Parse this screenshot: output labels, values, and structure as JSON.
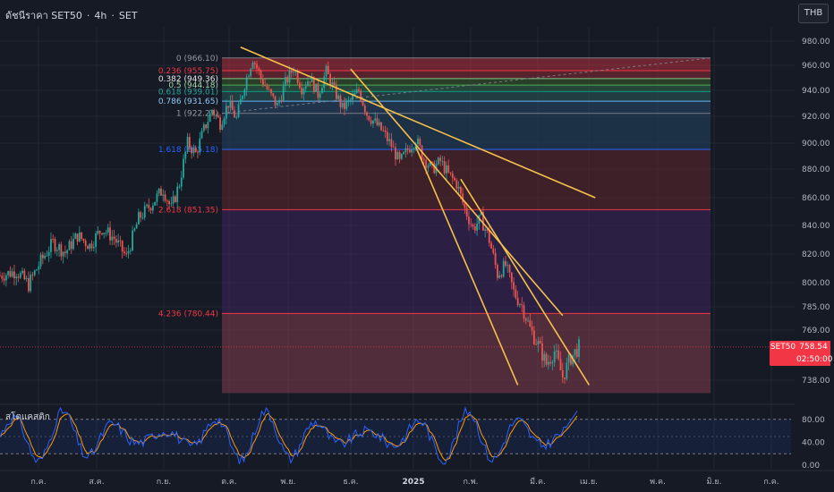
{
  "header": {
    "symbol_title": "ดัชนีราคา SET50",
    "interval": "4h",
    "exchange": "SET",
    "separator": "·"
  },
  "currency_button": "THB",
  "last_price": {
    "symbol": "SET50",
    "price": "758.54",
    "countdown": "02:50:00"
  },
  "oscillator": {
    "label": "สโตแคสติก"
  },
  "colors": {
    "background": "#161a25",
    "up": "#26a69a",
    "down": "#ef5350",
    "trendline": "#f5c14b",
    "stoch_k": "#2962ff",
    "stoch_d": "#ff9800"
  },
  "chart_data": {
    "type": "candlestick",
    "x_axis": {
      "tick_labels": [
        "ก.ค.",
        "ส.ค.",
        "ก.ย.",
        "ต.ค.",
        "พ.ย.",
        "ธ.ค.",
        "2025",
        "ก.พ.",
        "มี.ค.",
        "เม.ย.",
        "พ.ค.",
        "มิ.ย.",
        "ก.ค."
      ]
    },
    "y_axis": {
      "tick_labels": [
        "980.00",
        "960.00",
        "940.00",
        "920.00",
        "900.00",
        "880.00",
        "860.00",
        "840.00",
        "820.00",
        "800.00",
        "785.00",
        "769.00",
        "738.00"
      ],
      "range": [
        725,
        985
      ]
    },
    "price_path": [
      [
        0,
        805
      ],
      [
        8,
        808
      ],
      [
        14,
        799
      ],
      [
        20,
        815
      ],
      [
        26,
        828
      ],
      [
        32,
        821
      ],
      [
        38,
        833
      ],
      [
        44,
        826
      ],
      [
        50,
        838
      ],
      [
        56,
        831
      ],
      [
        62,
        818
      ],
      [
        68,
        845
      ],
      [
        74,
        855
      ],
      [
        80,
        866
      ],
      [
        84,
        852
      ],
      [
        88,
        870
      ],
      [
        92,
        900
      ],
      [
        96,
        892
      ],
      [
        100,
        910
      ],
      [
        104,
        925
      ],
      [
        108,
        915
      ],
      [
        112,
        930
      ],
      [
        116,
        918
      ],
      [
        120,
        945
      ],
      [
        124,
        966
      ],
      [
        128,
        950
      ],
      [
        132,
        938
      ],
      [
        136,
        928
      ],
      [
        140,
        946
      ],
      [
        144,
        958
      ],
      [
        148,
        942
      ],
      [
        152,
        950
      ],
      [
        156,
        937
      ],
      [
        160,
        955
      ],
      [
        164,
        940
      ],
      [
        168,
        926
      ],
      [
        172,
        932
      ],
      [
        176,
        940
      ],
      [
        180,
        922
      ],
      [
        184,
        915
      ],
      [
        188,
        908
      ],
      [
        192,
        898
      ],
      [
        196,
        885
      ],
      [
        200,
        895
      ],
      [
        204,
        903
      ],
      [
        208,
        888
      ],
      [
        212,
        880
      ],
      [
        216,
        886
      ],
      [
        220,
        876
      ],
      [
        224,
        870
      ],
      [
        228,
        852
      ],
      [
        232,
        838
      ],
      [
        236,
        845
      ],
      [
        240,
        830
      ],
      [
        244,
        806
      ],
      [
        248,
        812
      ],
      [
        252,
        794
      ],
      [
        256,
        786
      ],
      [
        260,
        770
      ],
      [
        264,
        760
      ],
      [
        268,
        748
      ],
      [
        272,
        756
      ],
      [
        276,
        740
      ],
      [
        280,
        752
      ],
      [
        284,
        758.54
      ]
    ],
    "fibonacci": [
      {
        "label": "0 (966.10)",
        "level": 966.1
      },
      {
        "label": "0.236 (955.75)",
        "level": 955.75
      },
      {
        "label": "0.382 (949.36)",
        "level": 949.36
      },
      {
        "label": "0.5 (944.18)",
        "level": 944.18
      },
      {
        "label": "0.618 (939.01)",
        "level": 939.01
      },
      {
        "label": "0.786 (931.65)",
        "level": 931.65
      },
      {
        "label": "1 (922.27)",
        "level": 922.27
      },
      {
        "label": "1.618 (895.18)",
        "level": 895.18
      },
      {
        "label": "2.618 (851.35)",
        "level": 851.35
      },
      {
        "label": "4.236 (780.44)",
        "level": 780.44
      }
    ],
    "fib_zone_bottom": 730,
    "trendlines": [
      {
        "from": [
          118,
          975
        ],
        "to": [
          292,
          860
        ]
      },
      {
        "from": [
          172,
          957
        ],
        "to": [
          276,
          779
        ]
      },
      {
        "from": [
          204,
          897
        ],
        "to": [
          254,
          735
        ]
      },
      {
        "from": [
          226,
          873
        ],
        "to": [
          289,
          735
        ]
      }
    ],
    "oscillator": {
      "name": "สโตแคสติก",
      "y_tick_labels": [
        "80.00",
        "40.00",
        "0.00"
      ],
      "upper_band": 80,
      "lower_band": 20,
      "range": [
        0,
        100
      ],
      "last_k": 100
    }
  }
}
